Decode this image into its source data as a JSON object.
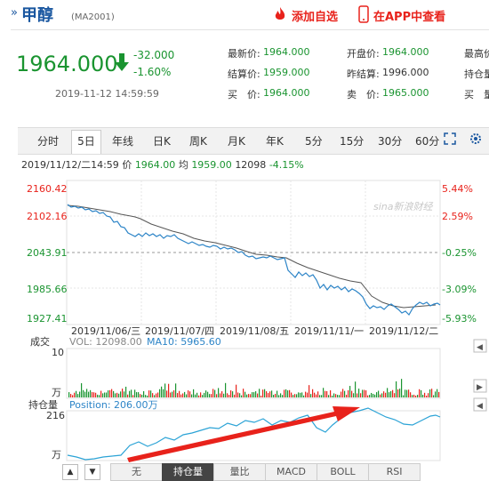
{
  "header": {
    "arrow_glyph": "»",
    "name": "甲醇",
    "code": "(MA2001)",
    "fav_label": "添加自选",
    "app_label": "在APP中查看"
  },
  "quote": {
    "price": "1964.000",
    "change": "-32.000",
    "change_pct": "-1.60%",
    "datetime": "2019-11-12 14:59:59",
    "fields": {
      "latest_label": "最新价:",
      "latest": "1964.000",
      "settle_label": "结算价:",
      "settle": "1959.000",
      "bid_label": "买　价:",
      "bid": "1964.000",
      "open_label": "开盘价:",
      "open": "1964.000",
      "prev_settle_label": "昨结算:",
      "prev_settle": "1996.000",
      "ask_label": "卖　价:",
      "ask": "1965.000",
      "high_label": "最高价",
      "hold_label": "持仓量",
      "buy_vol_label": "买　量"
    }
  },
  "toolbar": {
    "tabs": [
      "分时",
      "5日",
      "年线",
      "日K",
      "周K",
      "月K",
      "年K",
      "5分",
      "15分",
      "30分",
      "60分"
    ],
    "active_tab": "5日"
  },
  "info_line": {
    "date": "2019/11/12/二14:59",
    "price_label": "价",
    "price": "1964.00",
    "avg_label": "均",
    "avg": "1959.00",
    "volume": "12098",
    "pct": "-4.15%"
  },
  "chart": {
    "watermark": "sina新浪财经",
    "y_left": [
      "2160.42",
      "2102.16",
      "2043.91",
      "1985.66",
      "1927.41"
    ],
    "y_right": [
      "5.44%",
      "2.59%",
      "-0.25%",
      "-3.09%",
      "-5.93%"
    ],
    "x_labels": [
      "2019/11/06/三",
      "2019/11/07/四",
      "2019/11/08/五",
      "2019/11/11/一",
      "2019/11/12/二"
    ],
    "volume_title": "成交",
    "volume_text": "VOL: 12098.00",
    "ma_text": "MA10: 5965.60",
    "volume_top": "10",
    "volume_unit": "万",
    "hold_title": "持仓量",
    "position_text": "Position: 206.00万",
    "hold_top": "216",
    "hold_unit": "万",
    "colors": {
      "price_line": "#2c84c7",
      "avg_line": "#555555",
      "red": "#e8221b",
      "green": "#1a9430"
    }
  },
  "bottom_tabs": [
    "无",
    "持仓量",
    "量比",
    "MACD",
    "BOLL",
    "RSI"
  ],
  "bottom_active": "持仓量",
  "nav": {
    "up": "▲",
    "down": "▼"
  }
}
